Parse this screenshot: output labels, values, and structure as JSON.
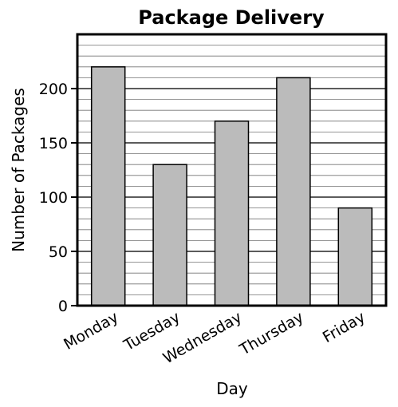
{
  "chart_data": {
    "type": "bar",
    "title": "Package Delivery",
    "xlabel": "Day",
    "ylabel": "Number of Packages",
    "categories": [
      "Monday",
      "Tuesday",
      "Wednesday",
      "Thursday",
      "Friday"
    ],
    "values": [
      220,
      130,
      170,
      210,
      90
    ],
    "ylim": [
      0,
      250
    ],
    "major_ticks": [
      0,
      50,
      100,
      150,
      200
    ],
    "minor_step": 10,
    "grid": true,
    "bar_color": "#bbbbbb",
    "bar_edge_color": "#000000"
  }
}
